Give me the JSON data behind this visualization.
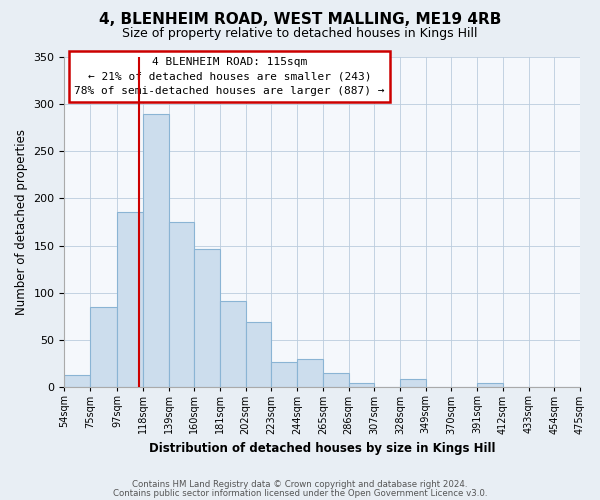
{
  "title": "4, BLENHEIM ROAD, WEST MALLING, ME19 4RB",
  "subtitle": "Size of property relative to detached houses in Kings Hill",
  "xlabel": "Distribution of detached houses by size in Kings Hill",
  "ylabel": "Number of detached properties",
  "bin_edges": [
    54,
    75,
    97,
    118,
    139,
    160,
    181,
    202,
    223,
    244,
    265,
    286,
    307,
    328,
    349,
    370,
    391,
    412,
    433,
    454,
    475
  ],
  "bin_labels": [
    "54sqm",
    "75sqm",
    "97sqm",
    "118sqm",
    "139sqm",
    "160sqm",
    "181sqm",
    "202sqm",
    "223sqm",
    "244sqm",
    "265sqm",
    "286sqm",
    "307sqm",
    "328sqm",
    "349sqm",
    "370sqm",
    "391sqm",
    "412sqm",
    "433sqm",
    "454sqm",
    "475sqm"
  ],
  "bar_heights": [
    13,
    85,
    185,
    289,
    175,
    146,
    91,
    69,
    27,
    30,
    15,
    5,
    0,
    9,
    0,
    0,
    5,
    0,
    0,
    0
  ],
  "bar_color": "#ccdded",
  "bar_edge_color": "#8ab4d4",
  "property_line_x": 115,
  "property_label": "4 BLENHEIM ROAD: 115sqm",
  "annotation_line1": "← 21% of detached houses are smaller (243)",
  "annotation_line2": "78% of semi-detached houses are larger (887) →",
  "annotation_box_color": "#ffffff",
  "annotation_box_edge": "#cc0000",
  "property_line_color": "#cc0000",
  "ylim": [
    0,
    350
  ],
  "yticks": [
    0,
    50,
    100,
    150,
    200,
    250,
    300,
    350
  ],
  "footer1": "Contains HM Land Registry data © Crown copyright and database right 2024.",
  "footer2": "Contains public sector information licensed under the Open Government Licence v3.0.",
  "bg_color": "#e8eef4",
  "plot_bg_color": "#f5f8fc"
}
